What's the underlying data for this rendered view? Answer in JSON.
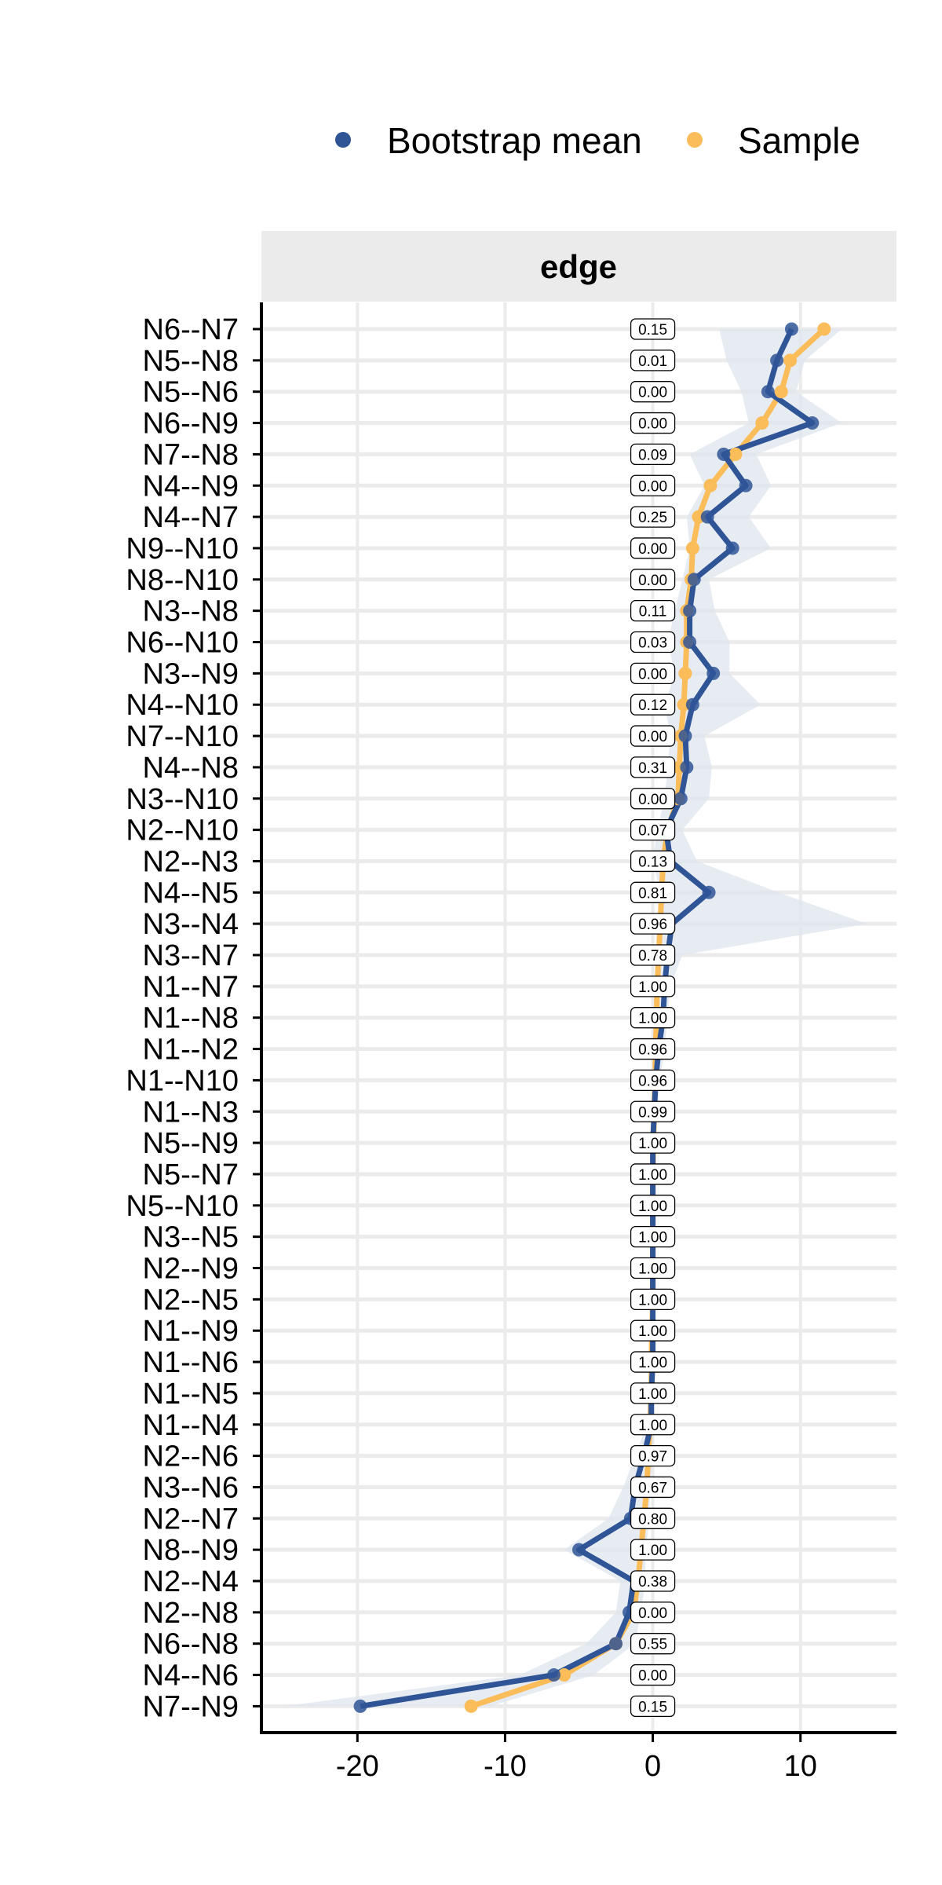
{
  "chart_data": {
    "type": "line",
    "facet": "edge",
    "legend": {
      "position": "top-right",
      "entries": [
        {
          "name": "Bootstrap mean",
          "color": "#2f5597"
        },
        {
          "name": "Sample",
          "color": "#fbbc5a"
        }
      ]
    },
    "xlim": [
      -26.5,
      16.5
    ],
    "x_ticks": [
      -20,
      -10,
      0,
      10
    ],
    "x_tick_labels": [
      "-20",
      "-10",
      "0",
      "10"
    ],
    "grid": true,
    "colors": {
      "band": "#dfe5ef",
      "panel_header": "#ebebeb",
      "gridline": "#ebebeb"
    },
    "edges": [
      {
        "name": "N6--N7",
        "bootstrap_mean": 9.4,
        "sample": 11.6,
        "ci": [
          4.5,
          12.8
        ],
        "label": "0.15"
      },
      {
        "name": "N5--N8",
        "bootstrap_mean": 8.4,
        "sample": 9.3,
        "ci": [
          5.0,
          10.3
        ],
        "label": "0.01"
      },
      {
        "name": "N5--N6",
        "bootstrap_mean": 7.8,
        "sample": 8.7,
        "ci": [
          6.0,
          9.7
        ],
        "label": "0.00"
      },
      {
        "name": "N6--N9",
        "bootstrap_mean": 10.8,
        "sample": 7.4,
        "ci": [
          6.5,
          12.8
        ],
        "label": "0.00"
      },
      {
        "name": "N7--N8",
        "bootstrap_mean": 4.8,
        "sample": 5.6,
        "ci": [
          2.5,
          7.0
        ],
        "label": "0.09"
      },
      {
        "name": "N4--N9",
        "bootstrap_mean": 6.3,
        "sample": 3.9,
        "ci": [
          3.5,
          8.0
        ],
        "label": "0.00"
      },
      {
        "name": "N4--N7",
        "bootstrap_mean": 3.7,
        "sample": 3.1,
        "ci": [
          2.3,
          6.5
        ],
        "label": "0.25"
      },
      {
        "name": "N9--N10",
        "bootstrap_mean": 5.4,
        "sample": 2.7,
        "ci": [
          2.5,
          8.0
        ],
        "label": "0.00"
      },
      {
        "name": "N8--N10",
        "bootstrap_mean": 2.8,
        "sample": 2.6,
        "ci": [
          2.0,
          3.8
        ],
        "label": "0.00"
      },
      {
        "name": "N3--N8",
        "bootstrap_mean": 2.5,
        "sample": 2.3,
        "ci": [
          1.5,
          4.2
        ],
        "label": "0.11"
      },
      {
        "name": "N6--N10",
        "bootstrap_mean": 2.5,
        "sample": 2.3,
        "ci": [
          1.0,
          5.2
        ],
        "label": "0.03"
      },
      {
        "name": "N3--N9",
        "bootstrap_mean": 4.1,
        "sample": 2.2,
        "ci": [
          1.5,
          5.2
        ],
        "label": "0.00"
      },
      {
        "name": "N4--N10",
        "bootstrap_mean": 2.7,
        "sample": 2.1,
        "ci": [
          0.8,
          7.3
        ],
        "label": "0.12"
      },
      {
        "name": "N7--N10",
        "bootstrap_mean": 2.2,
        "sample": 1.9,
        "ci": [
          1.2,
          3.5
        ],
        "label": "0.00"
      },
      {
        "name": "N4--N8",
        "bootstrap_mean": 2.3,
        "sample": 1.8,
        "ci": [
          1.0,
          4.0
        ],
        "label": "0.31"
      },
      {
        "name": "N3--N10",
        "bootstrap_mean": 1.9,
        "sample": 1.7,
        "ci": [
          0.8,
          3.8
        ],
        "label": "0.00"
      },
      {
        "name": "N2--N10",
        "bootstrap_mean": 0.9,
        "sample": 1.0,
        "ci": [
          0.3,
          2.0
        ],
        "label": "0.07"
      },
      {
        "name": "N2--N3",
        "bootstrap_mean": 1.2,
        "sample": 0.7,
        "ci": [
          0.0,
          3.0
        ],
        "label": "0.13"
      },
      {
        "name": "N4--N5",
        "bootstrap_mean": 3.8,
        "sample": 0.6,
        "ci": [
          0.5,
          8.5
        ],
        "label": "0.81"
      },
      {
        "name": "N3--N4",
        "bootstrap_mean": 1.3,
        "sample": 0.5,
        "ci": [
          0.5,
          14.5
        ],
        "label": "0.96"
      },
      {
        "name": "N3--N7",
        "bootstrap_mean": 1.0,
        "sample": 0.4,
        "ci": [
          0.3,
          2.0
        ],
        "label": "0.78"
      },
      {
        "name": "N1--N7",
        "bootstrap_mean": 0.8,
        "sample": 0.3,
        "ci": [
          0.2,
          1.2
        ],
        "label": "1.00"
      },
      {
        "name": "N1--N8",
        "bootstrap_mean": 0.7,
        "sample": 0.25,
        "ci": [
          0.2,
          1.0
        ],
        "label": "1.00"
      },
      {
        "name": "N1--N2",
        "bootstrap_mean": 0.4,
        "sample": 0.2,
        "ci": [
          0.1,
          0.8
        ],
        "label": "0.96"
      },
      {
        "name": "N1--N10",
        "bootstrap_mean": 0.2,
        "sample": 0.15,
        "ci": [
          0.0,
          0.5
        ],
        "label": "0.96"
      },
      {
        "name": "N1--N3",
        "bootstrap_mean": 0.1,
        "sample": 0.1,
        "ci": [
          0.0,
          0.3
        ],
        "label": "0.99"
      },
      {
        "name": "N5--N9",
        "bootstrap_mean": 0.0,
        "sample": 0.05,
        "ci": [
          0.0,
          0.2
        ],
        "label": "1.00"
      },
      {
        "name": "N5--N7",
        "bootstrap_mean": 0.0,
        "sample": 0.0,
        "ci": [
          -0.1,
          0.1
        ],
        "label": "1.00"
      },
      {
        "name": "N5--N10",
        "bootstrap_mean": 0.0,
        "sample": 0.0,
        "ci": [
          -0.1,
          0.1
        ],
        "label": "1.00"
      },
      {
        "name": "N3--N5",
        "bootstrap_mean": 0.0,
        "sample": 0.0,
        "ci": [
          -0.1,
          0.1
        ],
        "label": "1.00"
      },
      {
        "name": "N2--N9",
        "bootstrap_mean": 0.0,
        "sample": 0.0,
        "ci": [
          -0.1,
          0.1
        ],
        "label": "1.00"
      },
      {
        "name": "N2--N5",
        "bootstrap_mean": 0.0,
        "sample": 0.0,
        "ci": [
          -0.1,
          0.1
        ],
        "label": "1.00"
      },
      {
        "name": "N1--N9",
        "bootstrap_mean": 0.0,
        "sample": -0.05,
        "ci": [
          -0.2,
          0.1
        ],
        "label": "1.00"
      },
      {
        "name": "N1--N6",
        "bootstrap_mean": 0.0,
        "sample": -0.1,
        "ci": [
          -0.2,
          0.1
        ],
        "label": "1.00"
      },
      {
        "name": "N1--N5",
        "bootstrap_mean": -0.1,
        "sample": -0.1,
        "ci": [
          -0.3,
          0.1
        ],
        "label": "1.00"
      },
      {
        "name": "N1--N4",
        "bootstrap_mean": -0.1,
        "sample": -0.2,
        "ci": [
          -0.4,
          0.1
        ],
        "label": "1.00"
      },
      {
        "name": "N2--N6",
        "bootstrap_mean": -0.6,
        "sample": -0.3,
        "ci": [
          -1.2,
          0.0
        ],
        "label": "0.97"
      },
      {
        "name": "N3--N6",
        "bootstrap_mean": -1.2,
        "sample": -0.4,
        "ci": [
          -2.0,
          -0.2
        ],
        "label": "0.67"
      },
      {
        "name": "N2--N7",
        "bootstrap_mean": -1.5,
        "sample": -0.6,
        "ci": [
          -3.0,
          -0.2
        ],
        "label": "0.80"
      },
      {
        "name": "N8--N9",
        "bootstrap_mean": -5.0,
        "sample": -0.8,
        "ci": [
          -6.0,
          -0.5
        ],
        "label": "1.00"
      },
      {
        "name": "N2--N4",
        "bootstrap_mean": -1.3,
        "sample": -1.0,
        "ci": [
          -2.2,
          -0.5
        ],
        "label": "0.38"
      },
      {
        "name": "N2--N8",
        "bootstrap_mean": -1.6,
        "sample": -1.3,
        "ci": [
          -2.5,
          -0.8
        ],
        "label": "0.00"
      },
      {
        "name": "N6--N8",
        "bootstrap_mean": -2.5,
        "sample": -2.5,
        "ci": [
          -4.5,
          -1.2
        ],
        "label": "0.55"
      },
      {
        "name": "N4--N6",
        "bootstrap_mean": -6.7,
        "sample": -6.0,
        "ci": [
          -9.0,
          -4.0
        ],
        "label": "0.00"
      },
      {
        "name": "N7--N9",
        "bootstrap_mean": -19.8,
        "sample": -12.3,
        "ci": [
          -25.0,
          -11.0
        ],
        "label": "0.15"
      }
    ]
  }
}
